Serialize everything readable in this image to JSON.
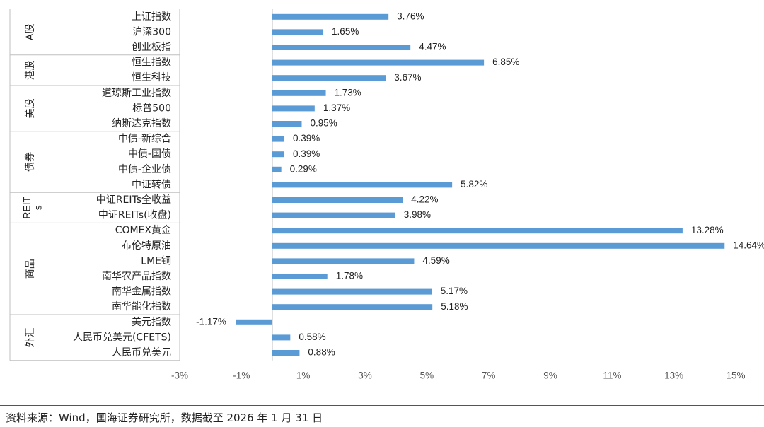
{
  "chart_data": {
    "type": "bar",
    "orientation": "horizontal",
    "categories": [
      "上证指数",
      "沪深300",
      "创业板指",
      "恒生指数",
      "恒生科技",
      "道琼斯工业指数",
      "标普500",
      "纳斯达克指数",
      "中债-新综合",
      "中债-国债",
      "中债-企业债",
      "中证转债",
      "中证REITs全收益",
      "中证REITs(收盘)",
      "COMEX黄金",
      "布伦特原油",
      "LME铜",
      "南华农产品指数",
      "南华金属指数",
      "南华能化指数",
      "美元指数",
      "人民币兑美元(CFETS)",
      "人民币兑美元"
    ],
    "values": [
      3.76,
      1.65,
      4.47,
      6.85,
      3.67,
      1.73,
      1.37,
      0.95,
      0.39,
      0.39,
      0.29,
      5.82,
      4.22,
      3.98,
      13.28,
      14.64,
      4.59,
      1.78,
      5.17,
      5.18,
      -1.17,
      0.58,
      0.88
    ],
    "value_labels": [
      "3.76%",
      "1.65%",
      "4.47%",
      "6.85%",
      "3.67%",
      "1.73%",
      "1.37%",
      "0.95%",
      "0.39%",
      "0.39%",
      "0.29%",
      "5.82%",
      "4.22%",
      "3.98%",
      "13.28%",
      "14.64%",
      "4.59%",
      "1.78%",
      "5.17%",
      "5.18%",
      "-1.17%",
      "0.58%",
      "0.88%"
    ],
    "groups": [
      {
        "name": "A股",
        "count": 3
      },
      {
        "name": "港股",
        "count": 2
      },
      {
        "name": "美股",
        "count": 3
      },
      {
        "name": "债券",
        "count": 4
      },
      {
        "name": "REITs",
        "count": 2
      },
      {
        "name": "商品",
        "count": 6
      },
      {
        "name": "外汇",
        "count": 3
      }
    ],
    "xlim": [
      -3,
      15
    ],
    "xticks": [
      -3,
      -1,
      1,
      3,
      5,
      7,
      9,
      11,
      13,
      15
    ],
    "xtick_labels": [
      "-3%",
      "-1%",
      "1%",
      "3%",
      "5%",
      "7%",
      "9%",
      "11%",
      "13%",
      "15%"
    ],
    "bar_color": "#5b9bd5",
    "grid": false,
    "legend": "none"
  },
  "source_note": "资料来源：Wind，国海证券研究所，数据截至 2026 年 1 月 31 日"
}
